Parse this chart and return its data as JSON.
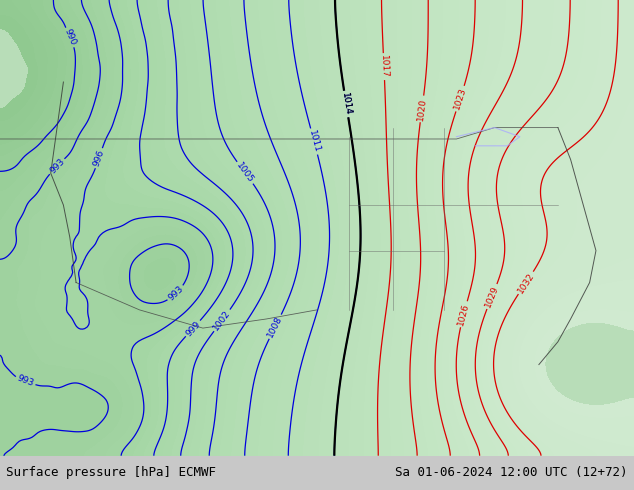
{
  "title_left": "Surface pressure [hPa] ECMWF",
  "title_right": "Sa 01-06-2024 12:00 UTC (12+72)",
  "fig_width": 6.34,
  "fig_height": 4.9,
  "dpi": 100,
  "bottom_bar_color": "#c8c8c8",
  "text_color": "#000000",
  "land_color_light": "#b8ddb8",
  "land_color_mid": "#a0cc9a",
  "blue_contour_color": "#0000dd",
  "red_contour_color": "#dd0000",
  "black_contour_color": "#000000",
  "font_size_bottom": 9,
  "contour_interval": 3,
  "blue_levels": [
    993,
    996,
    999,
    1002,
    1005,
    1008,
    1011,
    1014
  ],
  "red_levels": [
    1017,
    1020,
    1023,
    1026,
    1029,
    1032
  ],
  "black_level": 1014,
  "pressure_min": 990,
  "pressure_max": 1034
}
